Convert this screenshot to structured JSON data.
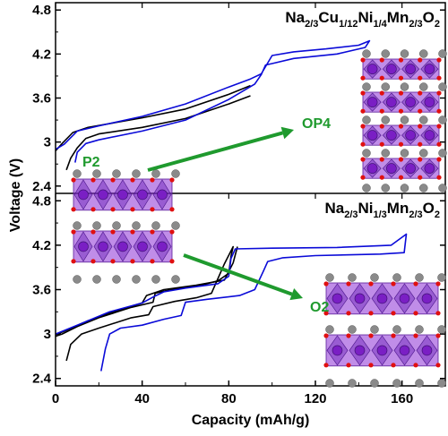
{
  "chart_data": [
    {
      "type": "line",
      "title": {
        "text": "Na2/3Cu1/12Ni1/4Mn2/3O2",
        "parts": [
          [
            "Na",
            ""
          ],
          [
            "2/3",
            "sub"
          ],
          [
            "Cu",
            ""
          ],
          [
            "1/12",
            "sub"
          ],
          [
            "Ni",
            ""
          ],
          [
            "1/4",
            "sub"
          ],
          [
            "Mn",
            ""
          ],
          [
            "2/3",
            "sub"
          ],
          [
            "O",
            ""
          ],
          [
            "2",
            "sub"
          ]
        ]
      },
      "ylim": [
        2.3,
        4.9
      ],
      "yticks": [
        "2.4",
        "3",
        "3.6",
        "4.2",
        "4.8"
      ],
      "series": [
        {
          "color": "#000000",
          "points": [
            [
              0,
              2.88
            ],
            [
              3,
              2.98
            ],
            [
              8,
              3.13
            ],
            [
              15,
              3.2
            ],
            [
              40,
              3.33
            ],
            [
              60,
              3.45
            ],
            [
              80,
              3.65
            ],
            [
              90,
              3.77
            ]
          ]
        },
        {
          "color": "#000000",
          "points": [
            [
              5,
              2.62
            ],
            [
              7,
              2.78
            ],
            [
              10,
              2.92
            ],
            [
              14,
              3.05
            ],
            [
              20,
              3.11
            ],
            [
              40,
              3.2
            ],
            [
              60,
              3.32
            ],
            [
              80,
              3.52
            ],
            [
              90,
              3.63
            ]
          ]
        },
        {
          "color": "#0a0ad8",
          "points": [
            [
              0,
              2.9
            ],
            [
              4,
              2.97
            ],
            [
              10,
              3.15
            ],
            [
              20,
              3.22
            ],
            [
              40,
              3.35
            ],
            [
              60,
              3.52
            ],
            [
              80,
              3.75
            ],
            [
              90,
              3.86
            ],
            [
              95,
              3.93
            ],
            [
              100,
              4.18
            ],
            [
              110,
              4.23
            ],
            [
              125,
              4.27
            ],
            [
              140,
              4.32
            ],
            [
              145,
              4.38
            ],
            [
              143,
              4.29
            ],
            [
              130,
              4.2
            ],
            [
              110,
              4.14
            ],
            [
              100,
              4.07
            ],
            [
              97,
              4.05
            ],
            [
              95,
              3.92
            ],
            [
              92,
              3.79
            ],
            [
              80,
              3.58
            ],
            [
              60,
              3.3
            ],
            [
              40,
              3.15
            ],
            [
              20,
              3.03
            ],
            [
              14,
              2.98
            ],
            [
              10,
              2.86
            ],
            [
              9,
              2.72
            ]
          ]
        }
      ],
      "annotations": [
        {
          "text": "P2",
          "color": "#1f9a2e"
        },
        {
          "text": "OP4",
          "color": "#1f9a2e"
        }
      ]
    },
    {
      "type": "line",
      "title": {
        "text": "Na2/3Ni1/3Mn2/3O2",
        "parts": [
          [
            "Na",
            ""
          ],
          [
            "2/3",
            "sub"
          ],
          [
            "Ni",
            ""
          ],
          [
            "1/3",
            "sub"
          ],
          [
            "Mn",
            ""
          ],
          [
            "2/3",
            "sub"
          ],
          [
            "O",
            ""
          ],
          [
            "2",
            "sub"
          ]
        ]
      },
      "ylim": [
        2.3,
        4.9
      ],
      "yticks": [
        "2.4",
        "3",
        "3.6",
        "4.2",
        "4.8"
      ],
      "series": [
        {
          "color": "#000000",
          "points": [
            [
              0,
              2.97
            ],
            [
              3,
              3.0
            ],
            [
              10,
              3.1
            ],
            [
              20,
              3.22
            ],
            [
              35,
              3.36
            ],
            [
              45,
              3.43
            ],
            [
              46,
              3.55
            ],
            [
              50,
              3.58
            ],
            [
              60,
              3.63
            ],
            [
              70,
              3.68
            ],
            [
              75,
              3.72
            ],
            [
              80,
              3.82
            ],
            [
              81,
              4.05
            ],
            [
              82,
              4.18
            ],
            [
              78,
              3.95
            ],
            [
              72,
              3.55
            ],
            [
              65,
              3.49
            ],
            [
              55,
              3.44
            ],
            [
              45,
              3.37
            ],
            [
              43,
              3.26
            ],
            [
              35,
              3.22
            ],
            [
              20,
              3.08
            ],
            [
              12,
              3.0
            ],
            [
              7,
              2.86
            ],
            [
              5,
              2.64
            ]
          ]
        },
        {
          "color": "#000000",
          "points": [
            [
              0,
              2.99
            ],
            [
              5,
              3.05
            ],
            [
              15,
              3.18
            ],
            [
              30,
              3.33
            ],
            [
              40,
              3.42
            ],
            [
              42,
              3.52
            ],
            [
              50,
              3.6
            ],
            [
              65,
              3.66
            ],
            [
              78,
              3.73
            ],
            [
              82,
              3.96
            ],
            [
              84,
              4.18
            ]
          ]
        },
        {
          "color": "#0a0ad8",
          "points": [
            [
              0,
              3.0
            ],
            [
              10,
              3.12
            ],
            [
              25,
              3.3
            ],
            [
              40,
              3.42
            ],
            [
              45,
              3.5
            ],
            [
              50,
              3.57
            ],
            [
              60,
              3.62
            ],
            [
              75,
              3.68
            ],
            [
              80,
              3.78
            ],
            [
              81,
              4.02
            ],
            [
              83,
              4.15
            ],
            [
              100,
              4.16
            ],
            [
              130,
              4.17
            ],
            [
              155,
              4.2
            ],
            [
              162,
              4.35
            ],
            [
              161,
              4.1
            ],
            [
              150,
              4.08
            ],
            [
              120,
              4.06
            ],
            [
              105,
              4.03
            ],
            [
              98,
              3.98
            ],
            [
              96,
              3.85
            ],
            [
              92,
              3.6
            ],
            [
              85,
              3.52
            ],
            [
              70,
              3.47
            ],
            [
              60,
              3.43
            ],
            [
              58,
              3.25
            ],
            [
              50,
              3.2
            ],
            [
              40,
              3.12
            ],
            [
              30,
              3.08
            ],
            [
              25,
              3.0
            ],
            [
              23,
              2.8
            ],
            [
              21,
              2.5
            ]
          ]
        }
      ],
      "annotations": [
        {
          "text": "O2",
          "color": "#1f9a2e"
        }
      ]
    }
  ],
  "x_axis": {
    "label": "Capacity (mAh/g)",
    "xlim": [
      0,
      180
    ],
    "ticks": [
      "0",
      "40",
      "80",
      "120",
      "160"
    ]
  },
  "y_axis_label": "Voltage (V)",
  "colors": {
    "arrow": "#1f9a2e",
    "manganese_octahedra": "#8c2fd6",
    "sodium": "#7a1fc4",
    "oxygen": "#e01010",
    "transition_metal": "#8a8a8a"
  },
  "structure_insets": [
    "P2 layered crystal structure",
    "OP4 layered crystal structure",
    "O2 layered crystal structure"
  ]
}
